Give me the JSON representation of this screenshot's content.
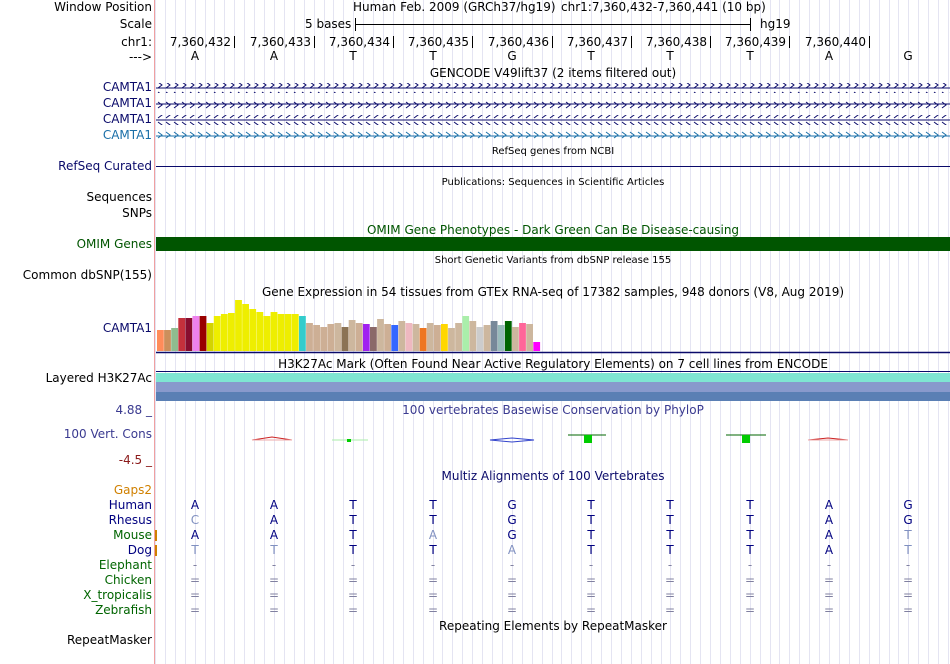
{
  "header": {
    "window_position_label": "Window Position",
    "scale_label": "Scale",
    "chrom_label": "chr1:",
    "arrow_label": "--->",
    "assembly_text": "Human Feb. 2009 (GRCh37/hg19)",
    "position_text": "chr1:7,360,432-7,360,441 (10 bp)",
    "scale_text": "5 bases",
    "db_text": "hg19",
    "coords": [
      "7,360,432",
      "7,360,433",
      "7,360,434",
      "7,360,435",
      "7,360,436",
      "7,360,437",
      "7,360,438",
      "7,360,439",
      "7,360,440"
    ],
    "bases": [
      "A",
      "A",
      "T",
      "T",
      "G",
      "T",
      "T",
      "T",
      "A",
      "G"
    ]
  },
  "tracks": {
    "gencode": {
      "title": "GENCODE V49lift37 (2 items filtered out)",
      "items": [
        "CAMTA1",
        "CAMTA1",
        "CAMTA1",
        "CAMTA1"
      ]
    },
    "refseq": {
      "label": "RefSeq Curated",
      "title": "RefSeq genes from NCBI"
    },
    "pubs": {
      "title": "Publications: Sequences in Scientific Articles",
      "label_a": "Sequences",
      "label_b": "SNPs"
    },
    "omim": {
      "title": "OMIM Gene Phenotypes - Dark Green Can Be Disease-causing",
      "label": "OMIM Genes",
      "color": "#005500"
    },
    "dbsnp": {
      "title": "Short Genetic Variants from dbSNP release 155",
      "label": "Common dbSNP(155)"
    },
    "gtex": {
      "title": "Gene Expression in 54 tissues from GTEx RNA-seq of 17382 samples, 948 donors (V8, Aug 2019)",
      "label": "CAMTA1",
      "levels": [
        0.42,
        0.42,
        0.45,
        0.65,
        0.65,
        0.68,
        0.68,
        0.55,
        0.68,
        0.72,
        0.74,
        1.0,
        0.92,
        0.82,
        0.76,
        0.68,
        0.76,
        0.72,
        0.72,
        0.72,
        0.68,
        0.55,
        0.5,
        0.48,
        0.52,
        0.55,
        0.48,
        0.6,
        0.55,
        0.52,
        0.48,
        0.62,
        0.52,
        0.5,
        0.58,
        0.55,
        0.52,
        0.45,
        0.55,
        0.5,
        0.52,
        0.45,
        0.55,
        0.68,
        0.58,
        0.48,
        0.5,
        0.58,
        0.5,
        0.58,
        0.48,
        0.55,
        0.52,
        0.18
      ],
      "colors": [
        "#FF8C5A",
        "#CC8F5C",
        "#8FBC8F",
        "#C4303C",
        "#880D2F",
        "#EE82EE",
        "#990000",
        "#D4D400",
        "#EEEE00",
        "#EEEE00",
        "#EEEE00",
        "#EEEE00",
        "#EEEE00",
        "#EEEE00",
        "#EEEE00",
        "#EEEE00",
        "#EEEE00",
        "#EEEE00",
        "#EEEE00",
        "#EEEE00",
        "#33CCCC",
        "#CDAF95",
        "#CDAF95",
        "#CDAF95",
        "#CDAF95",
        "#CDB79E",
        "#8B7355",
        "#CDB79E",
        "#CDAF95",
        "#A020F0",
        "#8B6969",
        "#CDB79E",
        "#CDAF95",
        "#3366FF",
        "#CDB79E",
        "#EEB8C0",
        "#CDB79E",
        "#EE7621",
        "#CDB79E",
        "#CDAF95",
        "#FFD700",
        "#CDB79E",
        "#CDB79E",
        "#AAEEAA",
        "#CDB79E",
        "#CCCCCC",
        "#CDB79E",
        "#778899",
        "#99BBBB",
        "#006400",
        "#CDB79E",
        "#FF6699",
        "#CDB79E",
        "#FF00FF"
      ]
    },
    "h3k27ac": {
      "title": "H3K27Ac Mark (Often Found Near Active Regulatory Elements) on 7 cell lines from ENCODE",
      "label": "Layered H3K27Ac",
      "colors": [
        "#7FE5D2",
        "#8899CC",
        "#5A7FB4"
      ]
    },
    "phylop": {
      "title": "100 vertebrates Basewise Conservation by PhyloP",
      "label": "100 Vert. Cons",
      "max_label": "4.88 _",
      "min_label": "-4.5 _"
    },
    "multiz": {
      "title": "Multiz Alignments of 100 Vertebrates",
      "gaps_label": "Gaps2",
      "species": [
        {
          "name": "Human",
          "color": "#000080",
          "seq": [
            "A",
            "A",
            "T",
            "T",
            "G",
            "T",
            "T",
            "T",
            "A",
            "G"
          ]
        },
        {
          "name": "Rhesus",
          "color": "#000080",
          "seq": [
            "C",
            "A",
            "T",
            "T",
            "G",
            "T",
            "T",
            "T",
            "A",
            "G"
          ]
        },
        {
          "name": "Mouse",
          "color": "#006400",
          "seq": [
            "A",
            "A",
            "T",
            "A",
            "G",
            "T",
            "T",
            "T",
            "A",
            "T"
          ]
        },
        {
          "name": "Dog",
          "color": "#000080",
          "seq": [
            "T",
            "T",
            "T",
            "T",
            "A",
            "T",
            "T",
            "T",
            "A",
            "T"
          ]
        },
        {
          "name": "Elephant",
          "color": "#006400",
          "seq": [
            "-",
            "-",
            "-",
            "-",
            "-",
            "-",
            "-",
            "-",
            "-",
            "-"
          ]
        },
        {
          "name": "Chicken",
          "color": "#006400",
          "seq": [
            "=",
            "=",
            "=",
            "=",
            "=",
            "=",
            "=",
            "=",
            "=",
            "="
          ]
        },
        {
          "name": "X_tropicalis",
          "color": "#006400",
          "seq": [
            "=",
            "=",
            "=",
            "=",
            "=",
            "=",
            "=",
            "=",
            "=",
            "="
          ]
        },
        {
          "name": "Zebrafish",
          "color": "#006400",
          "seq": [
            "=",
            "=",
            "=",
            "=",
            "=",
            "=",
            "=",
            "=",
            "=",
            "="
          ]
        }
      ]
    },
    "repeatmasker": {
      "title": "Repeating Elements by RepeatMasker",
      "label": "RepeatMasker"
    }
  }
}
